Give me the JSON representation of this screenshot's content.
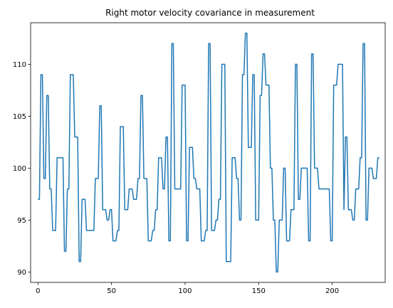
{
  "chart_data": {
    "type": "line",
    "title": "Right motor velocity covariance in measurement",
    "xlabel": "",
    "ylabel": "",
    "xlim": [
      -5,
      236
    ],
    "ylim": [
      89,
      114
    ],
    "xticks": [
      0,
      50,
      100,
      150,
      200
    ],
    "yticks": [
      90,
      95,
      100,
      105,
      110
    ],
    "grid": false,
    "line_color": "#1f77b4",
    "series": [
      {
        "values": [
          97,
          97,
          109,
          109,
          99,
          99,
          107,
          107,
          98,
          98,
          94,
          94,
          94,
          101,
          101,
          101,
          101,
          101,
          92,
          92,
          98,
          98,
          109,
          109,
          109,
          103,
          103,
          103,
          91,
          91,
          97,
          97,
          97,
          94,
          94,
          94,
          94,
          94,
          94,
          99,
          99,
          99,
          106,
          106,
          96,
          96,
          96,
          95,
          95,
          96,
          96,
          93,
          93,
          93,
          94,
          94,
          104,
          104,
          104,
          96,
          96,
          96,
          98,
          98,
          98,
          97,
          97,
          97,
          99,
          99,
          107,
          107,
          99,
          99,
          99,
          93,
          93,
          93,
          94,
          94,
          96,
          96,
          101,
          101,
          101,
          98,
          98,
          103,
          103,
          93,
          93,
          112,
          112,
          98,
          98,
          98,
          98,
          98,
          108,
          108,
          108,
          93,
          93,
          102,
          102,
          102,
          99,
          99,
          98,
          98,
          98,
          93,
          93,
          93,
          94,
          94,
          112,
          112,
          94,
          94,
          94,
          95,
          95,
          97,
          97,
          110,
          110,
          110,
          91,
          91,
          91,
          91,
          101,
          101,
          101,
          99,
          99,
          95,
          95,
          109,
          109,
          113,
          113,
          102,
          102,
          102,
          109,
          109,
          95,
          95,
          95,
          107,
          107,
          111,
          111,
          108,
          108,
          108,
          100,
          100,
          95,
          95,
          90,
          90,
          95,
          95,
          95,
          100,
          100,
          93,
          93,
          93,
          96,
          96,
          96,
          110,
          110,
          97,
          97,
          100,
          100,
          100,
          100,
          100,
          93,
          93,
          111,
          111,
          100,
          100,
          100,
          98,
          98,
          98,
          98,
          98,
          98,
          98,
          98,
          93,
          93,
          108,
          108,
          108,
          110,
          110,
          110,
          110,
          96,
          103,
          103,
          96,
          96,
          96,
          95,
          95,
          98,
          98,
          98,
          101,
          101,
          112,
          112,
          95,
          95,
          100,
          100,
          100,
          99,
          99,
          99,
          101,
          101
        ]
      }
    ]
  }
}
